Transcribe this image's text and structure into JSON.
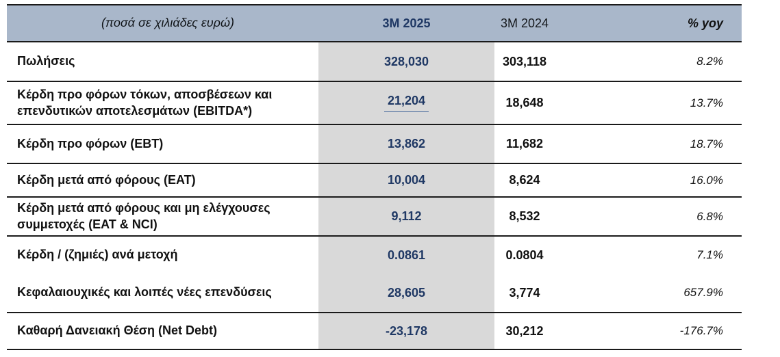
{
  "table": {
    "title_note": "(ποσά σε χιλιάδες ευρώ)",
    "columns": {
      "period_current": "3M 2025",
      "period_prior": "3M 2024",
      "change": "% yoy"
    },
    "rows": [
      {
        "label": "Πωλήσεις",
        "v2025": "328,030",
        "v2024": "303,118",
        "yoy": "8.2%"
      },
      {
        "label": "Κέρδη προ φόρων τόκων, αποσβέσεων και επενδυτικών αποτελεσμάτων (EBITDA*)",
        "v2025": "21,204",
        "v2024": "18,648",
        "yoy": "13.7%"
      },
      {
        "label": "Κέρδη προ φόρων (EBT)",
        "v2025": "13,862",
        "v2024": "11,682",
        "yoy": "18.7%"
      },
      {
        "label": "Κέρδη μετά από φόρους (EAT)",
        "v2025": "10,004",
        "v2024": "8,624",
        "yoy": "16.0%"
      },
      {
        "label": "Κέρδη μετά από φόρους και μη ελέγχουσες συμμετοχές (EAT & NCI)",
        "v2025": "9,112",
        "v2024": "8,532",
        "yoy": "6.8%"
      },
      {
        "label": "Κέρδη / (ζημιές) ανά μετοχή",
        "v2025": "0.0861",
        "v2024": "0.0804",
        "yoy": "7.1%"
      },
      {
        "label": "Κεφαλαιουχικές και λοιπές νέες επενδύσεις",
        "v2025": "28,605",
        "v2024": "3,774",
        "yoy": "657.9%"
      },
      {
        "label": "Καθαρή Δανειακή Θέση (Net Debt)",
        "v2025": "-23,178",
        "v2024": "30,212",
        "yoy": "-176.7%"
      }
    ]
  },
  "colors": {
    "header_bg": "#a9b7ca",
    "band_bg": "#d9d9d9",
    "navy": "#1f3864",
    "line": "#1a1a1a",
    "underline": "#3a6096"
  }
}
